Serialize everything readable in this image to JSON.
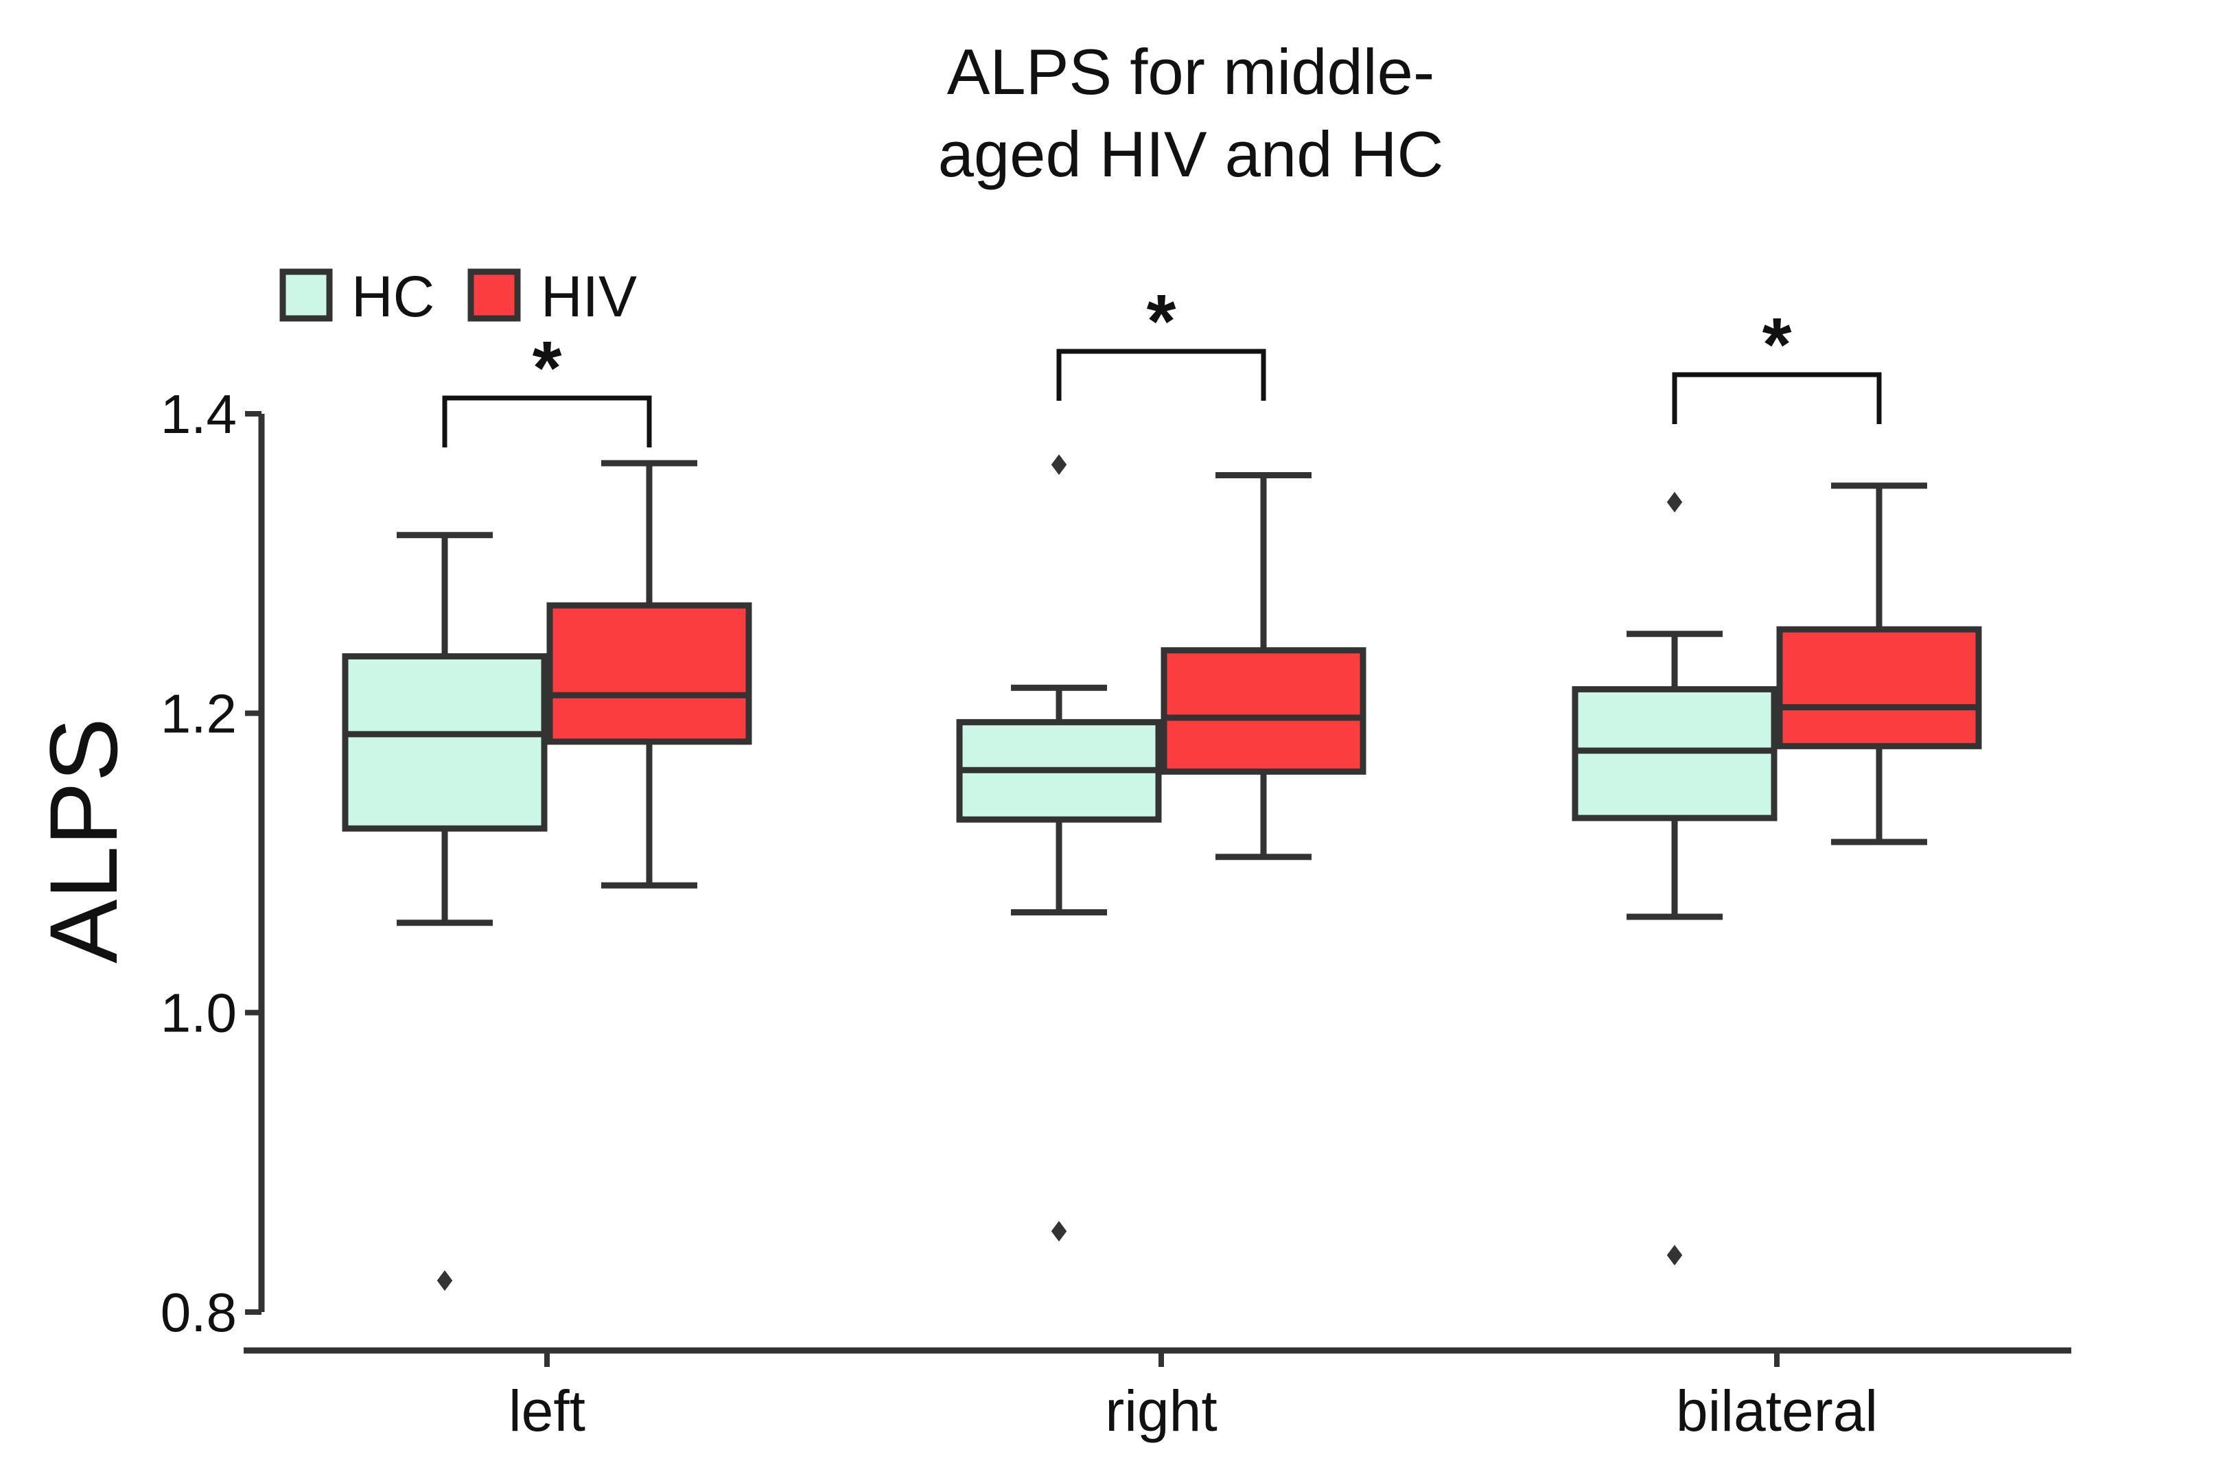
{
  "chart_data": {
    "type": "box",
    "title": [
      "ALPS for middle-",
      "aged HIV and HC"
    ],
    "xlabel": "",
    "ylabel": "ALPS",
    "ylim": [
      0.8,
      1.4
    ],
    "yticks": [
      0.8,
      1.0,
      1.2,
      1.4
    ],
    "ytick_labels": [
      "0.8",
      "1.0",
      "1.2",
      "1.4"
    ],
    "categories": [
      "left",
      "right",
      "bilateral"
    ],
    "legend": {
      "position": "top-left"
    },
    "series": [
      {
        "name": "HC",
        "color": "#ccf7e6",
        "boxes": [
          {
            "whisker_low": 1.06,
            "q1": 1.123,
            "median": 1.186,
            "q3": 1.238,
            "whisker_high": 1.319,
            "outliers": [
              0.821
            ]
          },
          {
            "whisker_low": 1.067,
            "q1": 1.129,
            "median": 1.162,
            "q3": 1.194,
            "whisker_high": 1.217,
            "outliers": [
              1.366,
              0.854
            ]
          },
          {
            "whisker_low": 1.064,
            "q1": 1.13,
            "median": 1.175,
            "q3": 1.216,
            "whisker_high": 1.253,
            "outliers": [
              1.341,
              0.838
            ]
          }
        ]
      },
      {
        "name": "HIV",
        "color": "#fc3d3f",
        "boxes": [
          {
            "whisker_low": 1.085,
            "q1": 1.181,
            "median": 1.212,
            "q3": 1.272,
            "whisker_high": 1.367,
            "outliers": []
          },
          {
            "whisker_low": 1.104,
            "q1": 1.161,
            "median": 1.197,
            "q3": 1.242,
            "whisker_high": 1.359,
            "outliers": []
          },
          {
            "whisker_low": 1.114,
            "q1": 1.178,
            "median": 1.204,
            "q3": 1.256,
            "whisker_high": 1.352,
            "outliers": []
          }
        ]
      }
    ],
    "significance": [
      {
        "category": "left",
        "label": "*"
      },
      {
        "category": "right",
        "label": "*"
      },
      {
        "category": "bilateral",
        "label": "*"
      }
    ]
  },
  "colors": {
    "stroke": "#333333",
    "text": "#111111"
  }
}
